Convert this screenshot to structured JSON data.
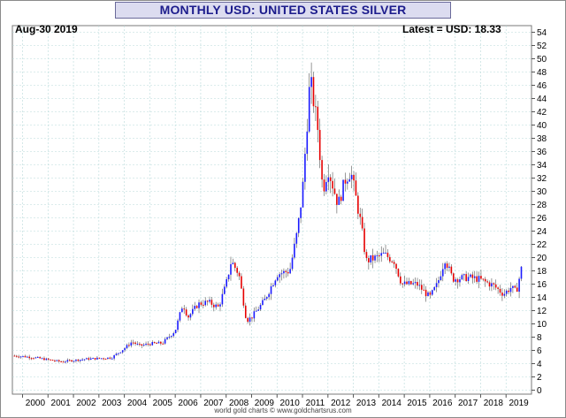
{
  "chart_data": {
    "type": "candlestick",
    "title": "MONTHLY USD: UNITED STATES SILVER",
    "date_label": "Aug-30  2019",
    "latest_label": "Latest = USD: 18.33",
    "footer": "world gold charts © www.goldchartsrus.com",
    "x_tick_labels": [
      "2000",
      "2001",
      "2002",
      "2003",
      "2004",
      "2005",
      "2006",
      "2007",
      "2008",
      "2009",
      "2010",
      "2011",
      "2012",
      "2013",
      "2014",
      "2015",
      "2016",
      "2017",
      "2018",
      "2019"
    ],
    "y_tick_labels": [
      "0",
      "2",
      "4",
      "6",
      "8",
      "10",
      "12",
      "14",
      "16",
      "18",
      "20",
      "22",
      "24",
      "26",
      "28",
      "30",
      "32",
      "34",
      "36",
      "38",
      "40",
      "42",
      "44",
      "46",
      "48",
      "50",
      "52",
      "54"
    ],
    "xlim": [
      1999.6,
      2020.0
    ],
    "ylim": [
      -0.6,
      55.0
    ],
    "grid": true,
    "colors": {
      "up": "#1a1aff",
      "down": "#e60000",
      "grid": "#b8dada",
      "title": "#1c1c8c"
    },
    "monthly_close_anchors": {
      "x": [
        1999.6,
        2000.0,
        2000.5,
        2001.0,
        2001.5,
        2002.0,
        2002.5,
        2003.0,
        2003.5,
        2004.0,
        2004.3,
        2004.6,
        2005.0,
        2005.5,
        2006.0,
        2006.3,
        2006.5,
        2006.9,
        2007.3,
        2007.7,
        2008.0,
        2008.2,
        2008.5,
        2008.8,
        2009.0,
        2009.5,
        2010.0,
        2010.5,
        2010.8,
        2011.0,
        2011.3,
        2011.6,
        2011.8,
        2012.0,
        2012.4,
        2012.7,
        2012.9,
        2013.3,
        2013.5,
        2013.9,
        2014.2,
        2014.6,
        2014.9,
        2015.5,
        2016.0,
        2016.3,
        2016.6,
        2016.9,
        2017.5,
        2017.9,
        2018.5,
        2018.9,
        2019.2,
        2019.4,
        2019.6
      ],
      "y": [
        5.2,
        5.1,
        4.9,
        4.6,
        4.3,
        4.5,
        4.7,
        4.8,
        4.9,
        6.3,
        7.3,
        6.7,
        7.0,
        7.1,
        9.0,
        13.0,
        11.0,
        13.0,
        13.3,
        12.5,
        16.0,
        19.5,
        17.5,
        10.5,
        11.0,
        13.5,
        17.5,
        18.0,
        24.0,
        30.0,
        47.0,
        39.5,
        30.0,
        33.5,
        28.0,
        32.0,
        33.0,
        25.0,
        19.5,
        20.0,
        20.5,
        19.5,
        16.0,
        16.0,
        14.0,
        16.0,
        19.8,
        16.8,
        17.0,
        16.8,
        15.8,
        14.5,
        15.5,
        14.8,
        18.3
      ]
    }
  }
}
